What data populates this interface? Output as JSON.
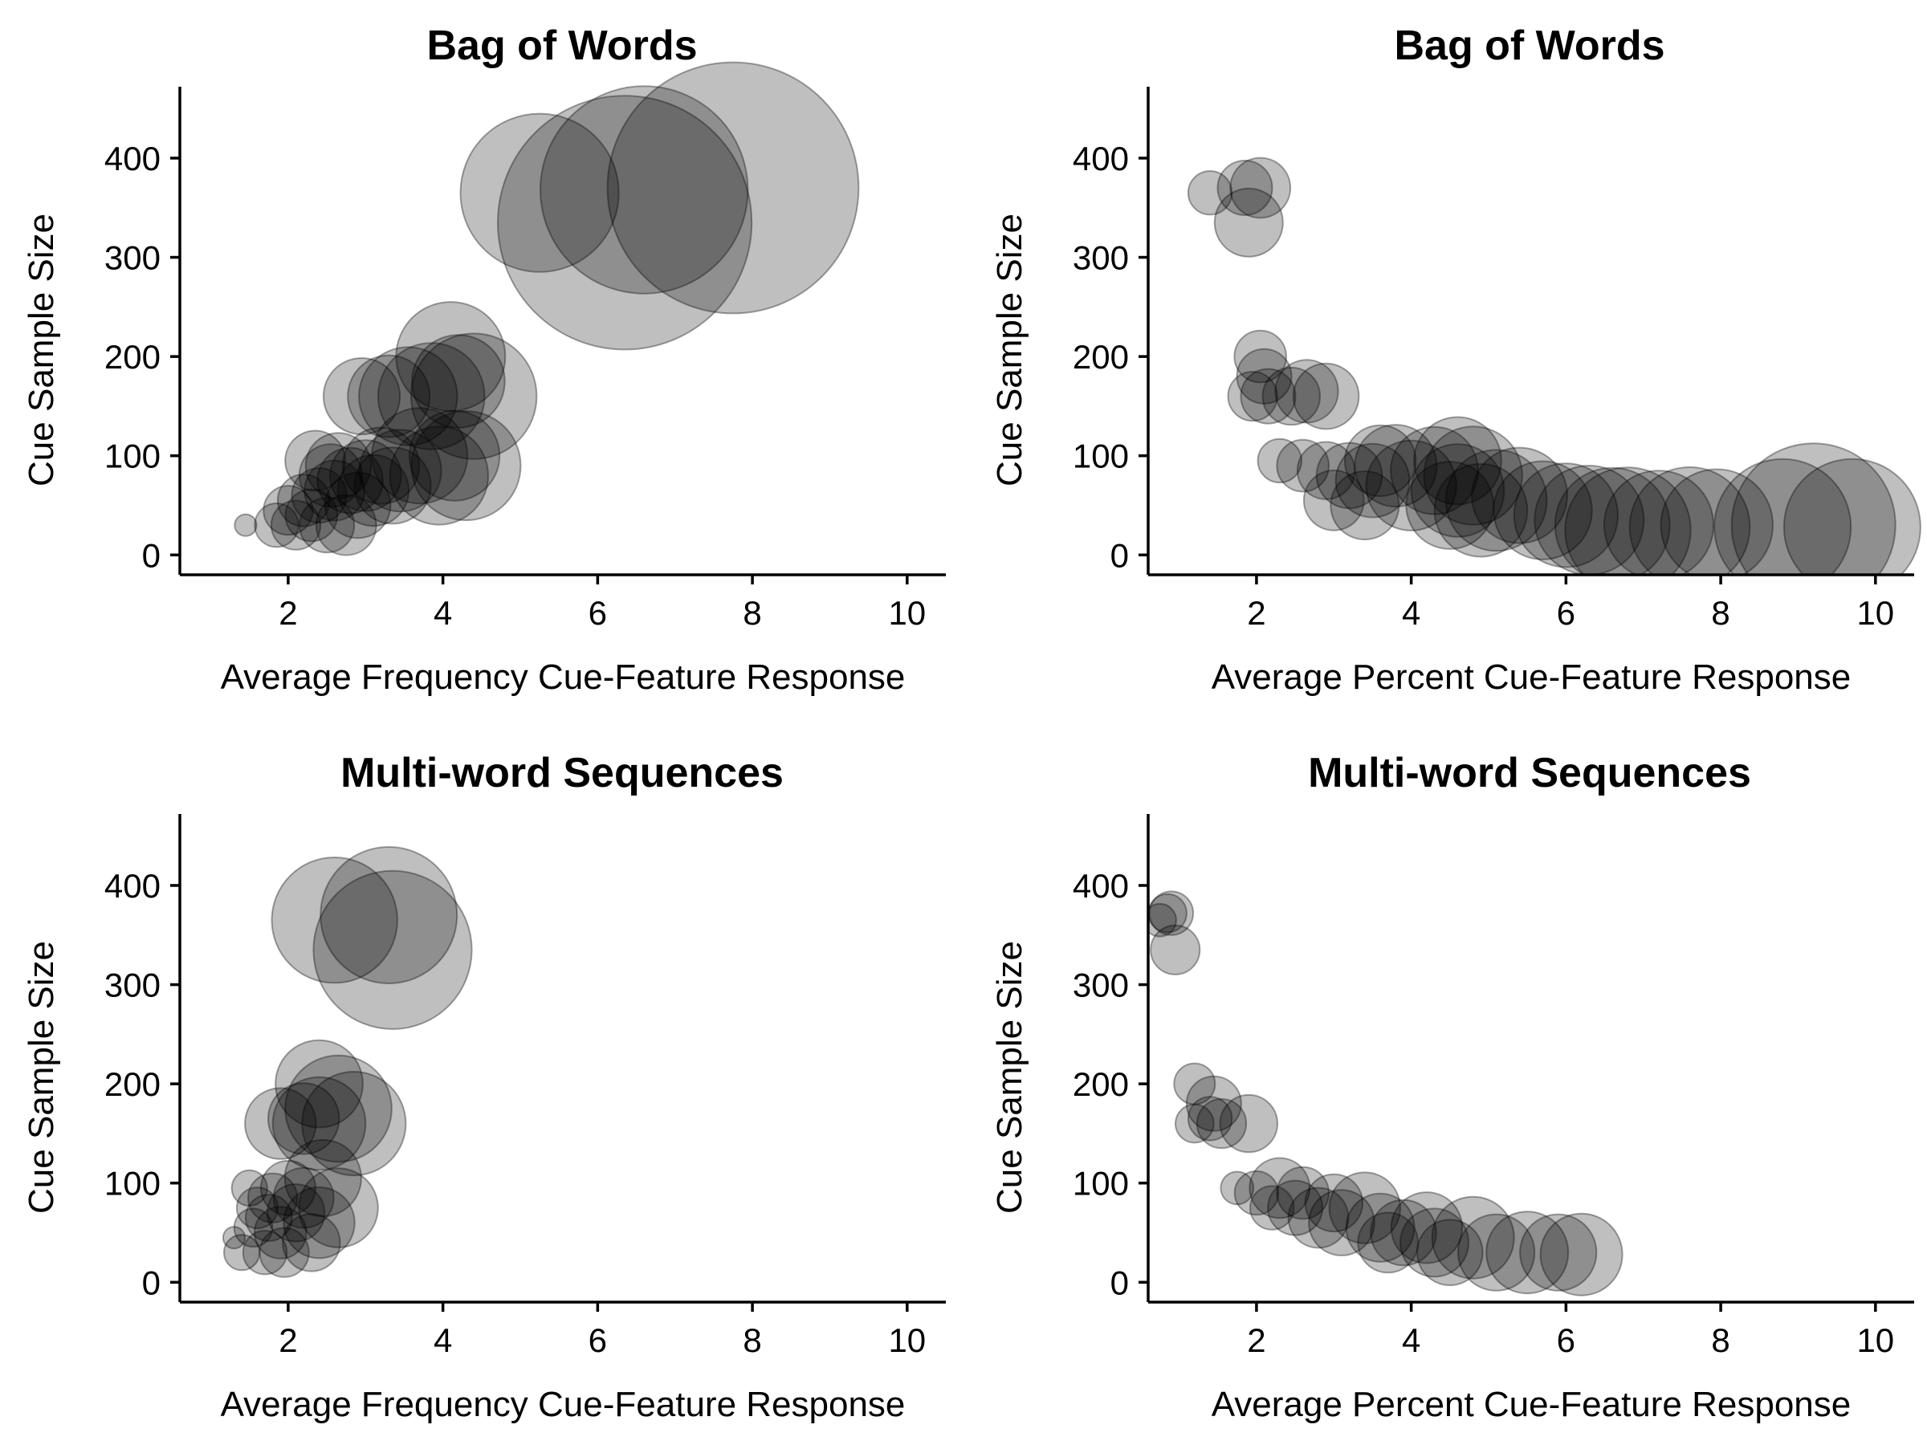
{
  "chart_data": [
    {
      "type": "scatter",
      "title": "Bag of Words",
      "xlabel": "Average Frequency Cue-Feature Response",
      "ylabel": "Cue Sample Size",
      "xlim": [
        0.6,
        10.5
      ],
      "ylim": [
        -20,
        472
      ],
      "x_ticks": [
        2,
        4,
        6,
        8,
        10
      ],
      "y_ticks": [
        0,
        100,
        200,
        300,
        400
      ],
      "grid": false,
      "point_color": "#000000",
      "point_alpha": 0.25,
      "size_encoding": "bubble area proportional to average percent cue-feature response",
      "points": [
        {
          "x": 5.25,
          "y": 365,
          "r": 5.8
        },
        {
          "x": 6.35,
          "y": 335,
          "r": 9.3
        },
        {
          "x": 6.6,
          "y": 368,
          "r": 7.6
        },
        {
          "x": 7.75,
          "y": 370,
          "r": 9.2
        },
        {
          "x": 4.1,
          "y": 200,
          "r": 4.0
        },
        {
          "x": 4.4,
          "y": 160,
          "r": 4.6
        },
        {
          "x": 3.55,
          "y": 160,
          "r": 3.6
        },
        {
          "x": 3.85,
          "y": 160,
          "r": 3.9
        },
        {
          "x": 4.2,
          "y": 175,
          "r": 3.4
        },
        {
          "x": 2.95,
          "y": 160,
          "r": 2.8
        },
        {
          "x": 3.3,
          "y": 160,
          "r": 3.0
        },
        {
          "x": 4.3,
          "y": 90,
          "r": 4.0
        },
        {
          "x": 3.95,
          "y": 80,
          "r": 3.6
        },
        {
          "x": 4.15,
          "y": 100,
          "r": 3.3
        },
        {
          "x": 3.7,
          "y": 100,
          "r": 3.5
        },
        {
          "x": 3.45,
          "y": 85,
          "r": 3.0
        },
        {
          "x": 3.2,
          "y": 90,
          "r": 2.8
        },
        {
          "x": 3.0,
          "y": 80,
          "r": 2.6
        },
        {
          "x": 2.8,
          "y": 75,
          "r": 2.4
        },
        {
          "x": 2.6,
          "y": 65,
          "r": 2.2
        },
        {
          "x": 2.4,
          "y": 60,
          "r": 2.0
        },
        {
          "x": 2.2,
          "y": 55,
          "r": 1.9
        },
        {
          "x": 2.0,
          "y": 45,
          "r": 1.8
        },
        {
          "x": 2.3,
          "y": 40,
          "r": 1.9
        },
        {
          "x": 2.5,
          "y": 30,
          "r": 2.0
        },
        {
          "x": 2.1,
          "y": 30,
          "r": 1.8
        },
        {
          "x": 1.85,
          "y": 30,
          "r": 1.6
        },
        {
          "x": 2.75,
          "y": 30,
          "r": 2.2
        },
        {
          "x": 2.9,
          "y": 50,
          "r": 2.4
        },
        {
          "x": 2.65,
          "y": 90,
          "r": 2.4
        },
        {
          "x": 2.35,
          "y": 95,
          "r": 2.2
        },
        {
          "x": 3.35,
          "y": 70,
          "r": 2.8
        },
        {
          "x": 3.1,
          "y": 65,
          "r": 2.6
        },
        {
          "x": 2.55,
          "y": 80,
          "r": 2.3
        },
        {
          "x": 1.45,
          "y": 30,
          "r": 0.8
        }
      ]
    },
    {
      "type": "scatter",
      "title": "Bag of Words",
      "xlabel": "Average Percent Cue-Feature Response",
      "ylabel": "Cue Sample Size",
      "xlim": [
        0.6,
        10.5
      ],
      "ylim": [
        -20,
        472
      ],
      "x_ticks": [
        2,
        4,
        6,
        8,
        10
      ],
      "y_ticks": [
        0,
        100,
        200,
        300,
        400
      ],
      "grid": false,
      "point_color": "#000000",
      "point_alpha": 0.25,
      "size_encoding": "bubble area proportional to average frequency cue-feature response",
      "points": [
        {
          "x": 1.4,
          "y": 365,
          "r": 1.6
        },
        {
          "x": 1.85,
          "y": 370,
          "r": 2.0
        },
        {
          "x": 2.05,
          "y": 370,
          "r": 2.2
        },
        {
          "x": 1.9,
          "y": 335,
          "r": 2.5
        },
        {
          "x": 2.05,
          "y": 200,
          "r": 1.9
        },
        {
          "x": 2.1,
          "y": 180,
          "r": 2.0
        },
        {
          "x": 1.95,
          "y": 160,
          "r": 1.8
        },
        {
          "x": 2.15,
          "y": 160,
          "r": 2.0
        },
        {
          "x": 2.45,
          "y": 160,
          "r": 2.1
        },
        {
          "x": 2.65,
          "y": 165,
          "r": 2.3
        },
        {
          "x": 2.9,
          "y": 160,
          "r": 2.4
        },
        {
          "x": 2.3,
          "y": 95,
          "r": 1.6
        },
        {
          "x": 2.6,
          "y": 90,
          "r": 1.9
        },
        {
          "x": 2.9,
          "y": 85,
          "r": 2.1
        },
        {
          "x": 3.2,
          "y": 80,
          "r": 2.4
        },
        {
          "x": 3.5,
          "y": 75,
          "r": 2.7
        },
        {
          "x": 3.8,
          "y": 90,
          "r": 3.0
        },
        {
          "x": 4.0,
          "y": 70,
          "r": 3.3
        },
        {
          "x": 4.3,
          "y": 85,
          "r": 3.2
        },
        {
          "x": 4.6,
          "y": 65,
          "r": 3.4
        },
        {
          "x": 4.8,
          "y": 80,
          "r": 3.6
        },
        {
          "x": 5.1,
          "y": 55,
          "r": 3.7
        },
        {
          "x": 5.4,
          "y": 60,
          "r": 3.5
        },
        {
          "x": 5.7,
          "y": 45,
          "r": 3.6
        },
        {
          "x": 6.0,
          "y": 40,
          "r": 3.8
        },
        {
          "x": 6.3,
          "y": 35,
          "r": 4.0
        },
        {
          "x": 6.6,
          "y": 30,
          "r": 4.2
        },
        {
          "x": 6.8,
          "y": 25,
          "r": 4.6
        },
        {
          "x": 7.2,
          "y": 30,
          "r": 4.0
        },
        {
          "x": 7.6,
          "y": 28,
          "r": 4.4
        },
        {
          "x": 7.95,
          "y": 30,
          "r": 4.1
        },
        {
          "x": 8.8,
          "y": 28,
          "r": 5.0
        },
        {
          "x": 9.2,
          "y": 30,
          "r": 6.0
        },
        {
          "x": 9.7,
          "y": 28,
          "r": 5.0
        },
        {
          "x": 3.0,
          "y": 55,
          "r": 2.2
        },
        {
          "x": 3.4,
          "y": 50,
          "r": 2.5
        },
        {
          "x": 4.5,
          "y": 50,
          "r": 3.2
        },
        {
          "x": 4.9,
          "y": 45,
          "r": 3.4
        },
        {
          "x": 3.6,
          "y": 95,
          "r": 2.6
        },
        {
          "x": 4.6,
          "y": 95,
          "r": 3.2
        }
      ]
    },
    {
      "type": "scatter",
      "title": "Multi-word Sequences",
      "xlabel": "Average Frequency Cue-Feature Response",
      "ylabel": "Cue Sample Size",
      "xlim": [
        0.6,
        10.5
      ],
      "ylim": [
        -20,
        472
      ],
      "x_ticks": [
        2,
        4,
        6,
        8,
        10
      ],
      "y_ticks": [
        0,
        100,
        200,
        300,
        400
      ],
      "grid": false,
      "point_color": "#000000",
      "point_alpha": 0.25,
      "size_encoding": "bubble area proportional to average percent cue-feature response",
      "points": [
        {
          "x": 2.6,
          "y": 365,
          "r": 4.6
        },
        {
          "x": 3.3,
          "y": 370,
          "r": 5.0
        },
        {
          "x": 3.35,
          "y": 335,
          "r": 5.8
        },
        {
          "x": 2.4,
          "y": 200,
          "r": 3.2
        },
        {
          "x": 1.9,
          "y": 160,
          "r": 2.6
        },
        {
          "x": 2.2,
          "y": 165,
          "r": 2.6
        },
        {
          "x": 2.4,
          "y": 160,
          "r": 3.4
        },
        {
          "x": 2.65,
          "y": 175,
          "r": 3.9
        },
        {
          "x": 2.85,
          "y": 160,
          "r": 3.8
        },
        {
          "x": 2.45,
          "y": 105,
          "r": 2.8
        },
        {
          "x": 2.65,
          "y": 75,
          "r": 2.9
        },
        {
          "x": 2.4,
          "y": 60,
          "r": 2.6
        },
        {
          "x": 2.0,
          "y": 95,
          "r": 2.0
        },
        {
          "x": 1.8,
          "y": 85,
          "r": 1.8
        },
        {
          "x": 1.6,
          "y": 75,
          "r": 1.5
        },
        {
          "x": 1.75,
          "y": 65,
          "r": 1.7
        },
        {
          "x": 1.9,
          "y": 50,
          "r": 1.9
        },
        {
          "x": 2.1,
          "y": 70,
          "r": 2.1
        },
        {
          "x": 2.2,
          "y": 85,
          "r": 2.2
        },
        {
          "x": 1.5,
          "y": 95,
          "r": 1.3
        },
        {
          "x": 1.55,
          "y": 55,
          "r": 1.4
        },
        {
          "x": 1.4,
          "y": 30,
          "r": 1.3
        },
        {
          "x": 1.7,
          "y": 30,
          "r": 1.6
        },
        {
          "x": 1.95,
          "y": 30,
          "r": 1.8
        },
        {
          "x": 1.3,
          "y": 45,
          "r": 0.8
        },
        {
          "x": 2.3,
          "y": 40,
          "r": 2.1
        }
      ]
    },
    {
      "type": "scatter",
      "title": "Multi-word Sequences",
      "xlabel": "Average Percent Cue-Feature Response",
      "ylabel": "Cue Sample Size",
      "xlim": [
        0.6,
        10.5
      ],
      "ylim": [
        -20,
        472
      ],
      "x_ticks": [
        2,
        4,
        6,
        8,
        10
      ],
      "y_ticks": [
        0,
        100,
        200,
        300,
        400
      ],
      "grid": false,
      "point_color": "#000000",
      "point_alpha": 0.25,
      "size_encoding": "bubble area proportional to average frequency cue-feature response",
      "points": [
        {
          "x": 0.75,
          "y": 365,
          "r": 1.2
        },
        {
          "x": 0.85,
          "y": 372,
          "r": 1.4
        },
        {
          "x": 0.9,
          "y": 372,
          "r": 1.6
        },
        {
          "x": 0.95,
          "y": 335,
          "r": 1.8
        },
        {
          "x": 1.2,
          "y": 200,
          "r": 1.5
        },
        {
          "x": 1.45,
          "y": 180,
          "r": 2.0
        },
        {
          "x": 1.2,
          "y": 160,
          "r": 1.4
        },
        {
          "x": 1.4,
          "y": 165,
          "r": 1.6
        },
        {
          "x": 1.55,
          "y": 160,
          "r": 1.8
        },
        {
          "x": 1.9,
          "y": 160,
          "r": 2.1
        },
        {
          "x": 1.75,
          "y": 95,
          "r": 1.2
        },
        {
          "x": 2.0,
          "y": 90,
          "r": 1.6
        },
        {
          "x": 2.3,
          "y": 95,
          "r": 2.2
        },
        {
          "x": 2.5,
          "y": 75,
          "r": 2.0
        },
        {
          "x": 2.8,
          "y": 65,
          "r": 2.2
        },
        {
          "x": 3.1,
          "y": 60,
          "r": 2.4
        },
        {
          "x": 3.4,
          "y": 75,
          "r": 2.6
        },
        {
          "x": 3.6,
          "y": 55,
          "r": 2.5
        },
        {
          "x": 3.9,
          "y": 50,
          "r": 2.4
        },
        {
          "x": 4.2,
          "y": 55,
          "r": 2.6
        },
        {
          "x": 4.5,
          "y": 30,
          "r": 2.4
        },
        {
          "x": 4.8,
          "y": 45,
          "r": 3.0
        },
        {
          "x": 5.1,
          "y": 30,
          "r": 2.8
        },
        {
          "x": 5.5,
          "y": 30,
          "r": 3.0
        },
        {
          "x": 5.9,
          "y": 30,
          "r": 2.8
        },
        {
          "x": 6.2,
          "y": 28,
          "r": 3.0
        },
        {
          "x": 2.6,
          "y": 90,
          "r": 1.9
        },
        {
          "x": 2.2,
          "y": 75,
          "r": 1.6
        },
        {
          "x": 3.0,
          "y": 80,
          "r": 2.1
        },
        {
          "x": 3.7,
          "y": 40,
          "r": 2.2
        },
        {
          "x": 4.3,
          "y": 40,
          "r": 2.5
        }
      ]
    }
  ]
}
